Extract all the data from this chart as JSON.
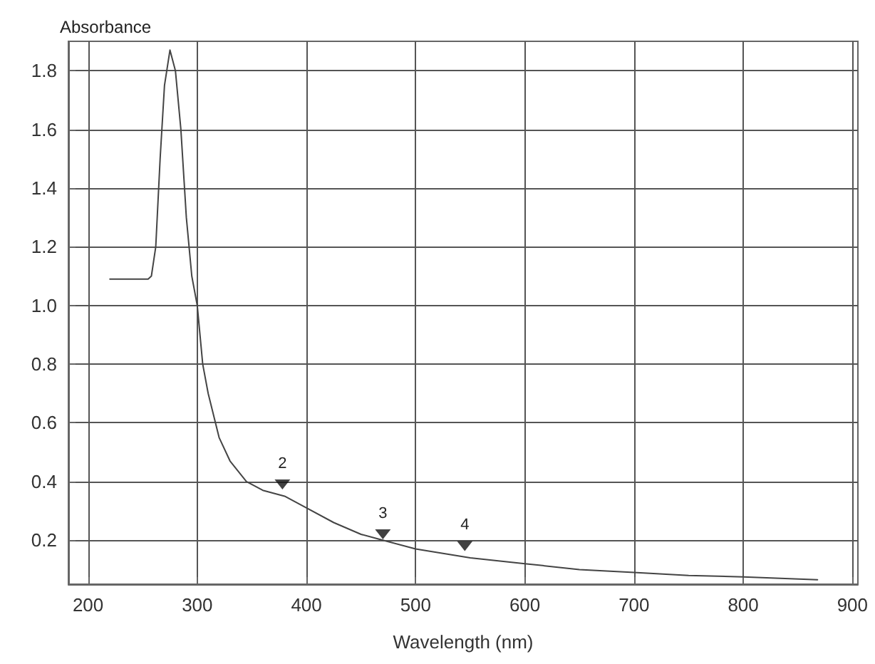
{
  "chart_data": {
    "type": "line",
    "xlabel": "Wavelength (nm)",
    "ylabel": "Absorbance",
    "x": [
      220,
      240,
      255,
      258,
      262,
      266,
      270,
      275,
      280,
      285,
      290,
      295,
      300,
      305,
      310,
      320,
      330,
      345,
      360,
      380,
      400,
      425,
      450,
      470,
      500,
      550,
      600,
      650,
      700,
      750,
      800,
      868
    ],
    "series": [
      {
        "color": "#444444",
        "values": [
          1.09,
          1.09,
          1.09,
          1.1,
          1.2,
          1.5,
          1.75,
          1.87,
          1.8,
          1.6,
          1.3,
          1.1,
          1.0,
          0.8,
          0.7,
          0.55,
          0.47,
          0.4,
          0.37,
          0.35,
          0.31,
          0.26,
          0.22,
          0.2,
          0.17,
          0.14,
          0.12,
          0.1,
          0.09,
          0.08,
          0.075,
          0.065
        ]
      },
      {
        "type": "scatter",
        "marker": "triangle",
        "color": "#111111",
        "x": [
          378,
          470,
          545
        ],
        "values": [
          0.39,
          0.22,
          0.18
        ]
      }
    ],
    "annotations": [
      {
        "text": "2",
        "x": 378,
        "y": 0.39
      },
      {
        "text": "3",
        "x": 470,
        "y": 0.22
      },
      {
        "text": "4",
        "x": 545,
        "y": 0.18
      }
    ],
    "xlim": [
      182,
      905
    ],
    "xticks": [
      200,
      300,
      400,
      500,
      600,
      700,
      800,
      900
    ],
    "ylim": [
      0.05,
      1.9
    ],
    "yticks": [
      0.2,
      0.4,
      0.6,
      0.8,
      {
        "value": 1.0,
        "label": "1.0"
      },
      1.2,
      1.4,
      1.6,
      1.8
    ],
    "grid": true,
    "marker": "none",
    "line_style": "solid"
  }
}
